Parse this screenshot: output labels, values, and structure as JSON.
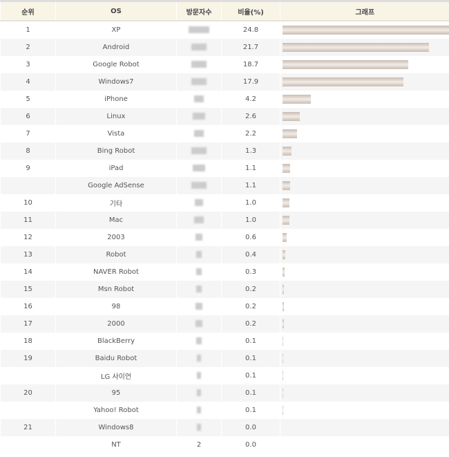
{
  "headers": {
    "rank": "순위",
    "os": "OS",
    "visitors": "방문자수",
    "ratio": "비율(%)",
    "graph": "그래프"
  },
  "rows": [
    {
      "rank": "1",
      "os": "XP",
      "visitors": "",
      "ratio": 24.8
    },
    {
      "rank": "2",
      "os": "Android",
      "visitors": "",
      "ratio": 21.7
    },
    {
      "rank": "3",
      "os": "Google Robot",
      "visitors": "",
      "ratio": 18.7
    },
    {
      "rank": "4",
      "os": "Windows7",
      "visitors": "",
      "ratio": 17.9
    },
    {
      "rank": "5",
      "os": "iPhone",
      "visitors": "",
      "ratio": 4.2
    },
    {
      "rank": "6",
      "os": "Linux",
      "visitors": "",
      "ratio": 2.6
    },
    {
      "rank": "7",
      "os": "Vista",
      "visitors": "",
      "ratio": 2.2
    },
    {
      "rank": "8",
      "os": "Bing Robot",
      "visitors": "",
      "ratio": 1.3
    },
    {
      "rank": "9",
      "os": "iPad",
      "visitors": "",
      "ratio": 1.1
    },
    {
      "rank": "",
      "os": "Google AdSense",
      "visitors": "",
      "ratio": 1.1
    },
    {
      "rank": "10",
      "os": "기타",
      "visitors": "",
      "ratio": 1.0
    },
    {
      "rank": "11",
      "os": "Mac",
      "visitors": "",
      "ratio": 1.0
    },
    {
      "rank": "12",
      "os": "2003",
      "visitors": "",
      "ratio": 0.6
    },
    {
      "rank": "13",
      "os": "Robot",
      "visitors": "",
      "ratio": 0.4
    },
    {
      "rank": "14",
      "os": "NAVER Robot",
      "visitors": "",
      "ratio": 0.3
    },
    {
      "rank": "15",
      "os": "Msn Robot",
      "visitors": "",
      "ratio": 0.2
    },
    {
      "rank": "16",
      "os": "98",
      "visitors": "",
      "ratio": 0.2
    },
    {
      "rank": "17",
      "os": "2000",
      "visitors": "",
      "ratio": 0.2
    },
    {
      "rank": "18",
      "os": "BlackBerry",
      "visitors": "",
      "ratio": 0.1
    },
    {
      "rank": "19",
      "os": "Baidu Robot",
      "visitors": "",
      "ratio": 0.1
    },
    {
      "rank": "",
      "os": "LG 사이언",
      "visitors": "",
      "ratio": 0.1
    },
    {
      "rank": "20",
      "os": "95",
      "visitors": "",
      "ratio": 0.1
    },
    {
      "rank": "",
      "os": "Yahoo! Robot",
      "visitors": "",
      "ratio": 0.1
    },
    {
      "rank": "21",
      "os": "Windows8",
      "visitors": "",
      "ratio": 0.0
    },
    {
      "rank": "",
      "os": "NT",
      "visitors": "2",
      "ratio": 0.0
    }
  ]
}
